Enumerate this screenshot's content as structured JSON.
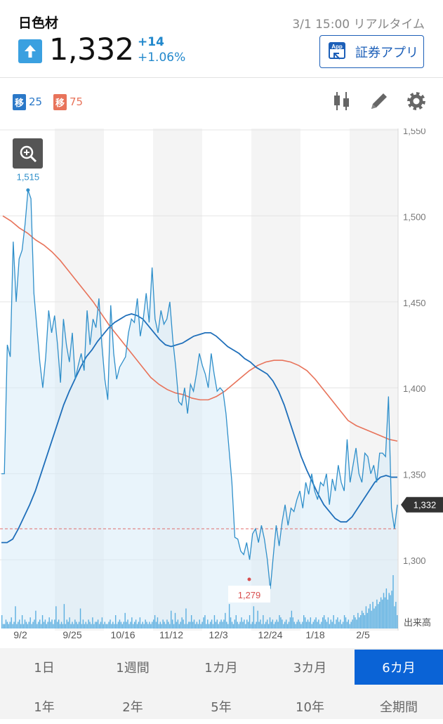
{
  "header": {
    "stock_name": "日色材",
    "update_time": "3/1 15:00 リアルタイム",
    "price": "1,332",
    "change_abs": "+14",
    "change_pct": "+1.06%",
    "direction_icon": "up-arrow-icon",
    "app_button_label": "証券アプリ",
    "app_icon_text": "App"
  },
  "toolbar": {
    "ma_short": {
      "tag": "移",
      "value": "25",
      "color": "#2a78c8"
    },
    "ma_long": {
      "tag": "移",
      "value": "75",
      "color": "#e8735a"
    },
    "icons": [
      "candlestick-icon",
      "pencil-icon",
      "gear-icon"
    ]
  },
  "chart_data": {
    "type": "line",
    "ylim": [
      1260,
      1550
    ],
    "yticks": [
      "1,550",
      "1,500",
      "1,450",
      "1,400",
      "1,350",
      "1,300"
    ],
    "ytick_values": [
      1550,
      1500,
      1450,
      1400,
      1350,
      1300
    ],
    "x_labels": [
      "9/2",
      "9/25",
      "10/16",
      "11/12",
      "12/3",
      "12/24",
      "1/18",
      "2/5"
    ],
    "volume_label": "出来高",
    "price_label": "1,332",
    "high_label": "1,515",
    "low_label": "1,279",
    "prev_close": 1318,
    "colors": {
      "price": "#2f8fca",
      "ma25": "#1f6fba",
      "ma75": "#e8735a",
      "volume": "#5aaee0",
      "ref": "#e06b6b"
    },
    "series": [
      {
        "values": [
          1350,
          1350,
          1425,
          1418,
          1485,
          1450,
          1475,
          1480,
          1495,
          1515,
          1510,
          1455,
          1435,
          1415,
          1400,
          1418,
          1445,
          1432,
          1442,
          1425,
          1403,
          1440,
          1425,
          1415,
          1432,
          1405,
          1413,
          1420,
          1410,
          1445,
          1425,
          1440,
          1435,
          1452,
          1425,
          1405,
          1393,
          1448,
          1420,
          1405,
          1412,
          1415,
          1418,
          1432,
          1440,
          1438,
          1452,
          1430,
          1440,
          1455,
          1438,
          1470,
          1440,
          1432,
          1445,
          1437,
          1440,
          1450,
          1428,
          1412,
          1392,
          1390,
          1400,
          1385,
          1402,
          1398,
          1408,
          1420,
          1413,
          1408,
          1400,
          1420,
          1408,
          1398,
          1400,
          1398,
          1385,
          1365,
          1345,
          1313,
          1312,
          1305,
          1303,
          1310,
          1300,
          1315,
          1318,
          1310,
          1320,
          1312,
          1300,
          1283,
          1302,
          1320,
          1308,
          1322,
          1332,
          1320,
          1330,
          1328,
          1335,
          1340,
          1330,
          1345,
          1338,
          1350,
          1340,
          1335,
          1345,
          1343,
          1350,
          1332,
          1347,
          1340,
          1355,
          1345,
          1340,
          1370,
          1345,
          1355,
          1365,
          1350,
          1345,
          1362,
          1360,
          1350,
          1355,
          1345,
          1362,
          1362,
          1360,
          1395,
          1330,
          1318,
          1332
        ]
      },
      {
        "name": "25",
        "values": [
          1310,
          1310,
          1312,
          1318,
          1325,
          1332,
          1340,
          1350,
          1360,
          1370,
          1380,
          1390,
          1398,
          1405,
          1412,
          1418,
          1422,
          1427,
          1431,
          1435,
          1438,
          1440,
          1442,
          1443,
          1442,
          1440,
          1436,
          1432,
          1428,
          1425,
          1424,
          1425,
          1426,
          1428,
          1430,
          1431,
          1432,
          1432,
          1430,
          1427,
          1424,
          1422,
          1420,
          1417,
          1415,
          1412,
          1410,
          1408,
          1404,
          1398,
          1390,
          1380,
          1370,
          1360,
          1352,
          1345,
          1338,
          1332,
          1328,
          1324,
          1322,
          1322,
          1325,
          1330,
          1335,
          1340,
          1345,
          1348,
          1349,
          1348,
          1348
        ]
      },
      {
        "name": "75",
        "values": [
          1500,
          1497,
          1493,
          1490,
          1486,
          1483,
          1479,
          1474,
          1468,
          1462,
          1456,
          1450,
          1443,
          1436,
          1430,
          1424,
          1418,
          1412,
          1406,
          1402,
          1399,
          1397,
          1396,
          1394,
          1393,
          1393,
          1395,
          1398,
          1402,
          1406,
          1410,
          1413,
          1415,
          1416,
          1416,
          1415,
          1413,
          1410,
          1405,
          1399,
          1393,
          1387,
          1381,
          1378,
          1376,
          1374,
          1372,
          1370,
          1369
        ]
      }
    ],
    "volume": [
      6,
      2,
      2,
      4,
      3,
      2,
      3,
      5,
      2,
      3,
      10,
      2,
      3,
      4,
      2,
      6,
      2,
      4,
      3,
      2,
      3,
      5,
      2,
      3,
      4,
      8,
      2,
      3,
      4,
      2,
      6,
      3,
      4,
      2,
      3,
      5,
      3,
      4,
      2,
      4,
      10,
      3,
      4,
      2,
      3,
      2,
      11,
      2,
      4,
      3,
      5,
      2,
      3,
      2,
      4,
      3,
      2,
      3,
      9,
      2,
      4,
      2,
      3,
      2,
      4,
      3,
      2,
      5,
      2,
      3,
      3,
      4,
      2,
      3,
      5,
      2,
      3,
      2,
      2,
      3,
      4,
      2,
      3,
      2,
      6,
      2,
      3,
      4,
      3,
      2,
      3,
      7,
      3,
      4,
      2,
      3,
      5,
      2,
      3,
      4,
      2,
      3,
      5,
      2,
      3,
      2,
      4,
      3,
      2,
      3,
      2,
      3,
      4,
      6,
      3,
      5,
      2,
      3,
      2,
      4,
      3,
      2,
      4,
      3,
      2,
      8,
      4,
      2,
      7,
      3,
      4,
      2,
      3,
      5,
      4,
      2,
      9,
      2,
      3,
      3,
      6,
      3,
      4,
      2,
      3,
      2,
      4,
      2,
      3,
      5,
      6,
      2,
      4,
      2,
      3,
      4,
      2,
      6,
      3,
      4,
      2,
      3,
      4,
      3,
      4,
      7,
      3,
      2,
      11,
      5,
      3,
      2,
      4,
      6,
      3,
      2,
      3,
      5,
      3,
      4,
      2,
      4,
      3,
      6,
      2,
      3,
      10,
      2,
      3,
      8,
      3,
      4,
      2,
      6,
      2,
      3,
      4,
      2,
      5,
      3,
      4,
      2,
      3,
      4,
      3,
      6,
      5,
      4,
      2,
      3,
      4,
      2,
      3,
      5,
      8,
      5,
      3,
      2,
      3,
      4,
      3,
      2,
      3,
      6,
      5,
      3,
      4,
      3,
      5,
      2,
      3,
      4,
      5,
      3,
      4,
      2,
      3,
      5,
      6,
      4,
      3,
      5,
      2,
      4,
      3,
      6,
      2,
      4,
      5,
      3,
      4,
      2,
      3,
      6,
      5,
      3,
      4,
      2,
      3,
      4,
      6,
      5,
      4,
      7,
      5,
      6,
      8,
      7,
      6,
      10,
      7,
      9,
      11,
      8,
      12,
      9,
      10,
      13,
      11,
      12,
      14,
      13,
      16,
      14,
      18,
      13,
      16,
      15,
      17,
      24,
      10,
      12,
      6
    ],
    "volume_max": 24
  },
  "periods": [
    {
      "label": "1日",
      "active": false
    },
    {
      "label": "1週間",
      "active": false
    },
    {
      "label": "1カ月",
      "active": false
    },
    {
      "label": "3カ月",
      "active": false
    },
    {
      "label": "6カ月",
      "active": true
    },
    {
      "label": "1年",
      "active": false
    },
    {
      "label": "2年",
      "active": false
    },
    {
      "label": "5年",
      "active": false
    },
    {
      "label": "10年",
      "active": false
    },
    {
      "label": "全期間",
      "active": false
    }
  ]
}
